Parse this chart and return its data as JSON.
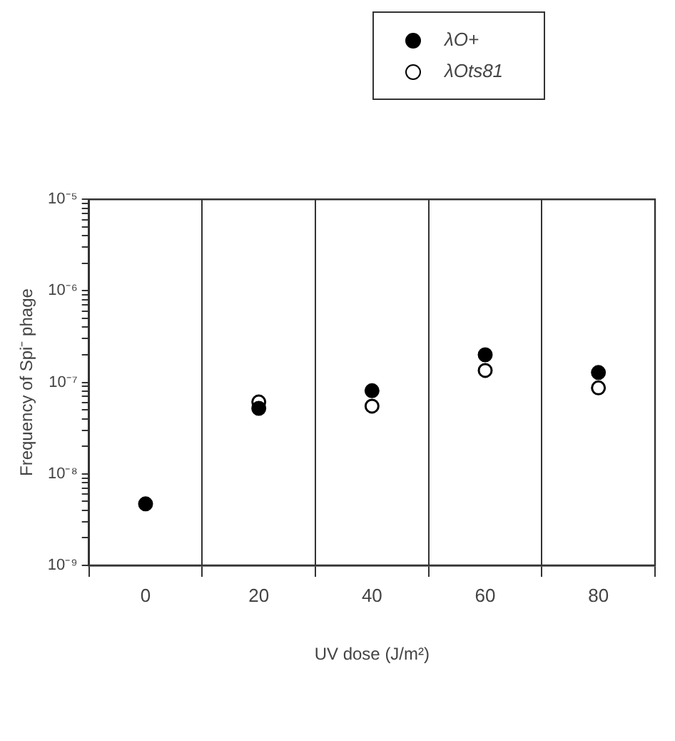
{
  "chart_data": {
    "type": "scatter",
    "xlabel": "UV dose (J/m²)",
    "ylabel": "Frequency of Spi⁻ phage",
    "categories": [
      "0",
      "20",
      "40",
      "60",
      "80"
    ],
    "series": [
      {
        "name": "λO+",
        "color": "#000000",
        "values": [
          4.7e-09,
          5.2e-08,
          8.1e-08,
          2e-07,
          1.28e-07
        ]
      },
      {
        "name": "λOts81",
        "color": "#000000",
        "values": [
          null,
          6.1e-08,
          5.5e-08,
          1.35e-07,
          8.7e-08
        ]
      }
    ],
    "log": "y",
    "ylim": [
      1e-09,
      1e-05
    ],
    "yticks": [
      {
        "value": 1e-09,
        "label": "10⁻⁹"
      },
      {
        "value": 2e-09,
        "label": null
      },
      {
        "value": 3e-09,
        "label": null
      },
      {
        "value": 4e-09,
        "label": null
      },
      {
        "value": 5e-09,
        "label": null
      },
      {
        "value": 6e-09,
        "label": null
      },
      {
        "value": 7e-09,
        "label": null
      },
      {
        "value": 8e-09,
        "label": null
      },
      {
        "value": 9e-09,
        "label": null
      },
      {
        "value": 1e-08,
        "label": "10⁻⁸"
      },
      {
        "value": 2e-08,
        "label": null
      },
      {
        "value": 3e-08,
        "label": null
      },
      {
        "value": 4e-08,
        "label": null
      },
      {
        "value": 5e-08,
        "label": null
      },
      {
        "value": 6e-08,
        "label": null
      },
      {
        "value": 7e-08,
        "label": null
      },
      {
        "value": 8e-08,
        "label": null
      },
      {
        "value": 9e-08,
        "label": null
      },
      {
        "value": 1e-07,
        "label": "10⁻⁷"
      },
      {
        "value": 2e-07,
        "label": null
      },
      {
        "value": 3e-07,
        "label": null
      },
      {
        "value": 4e-07,
        "label": null
      },
      {
        "value": 5e-07,
        "label": null
      },
      {
        "value": 6e-07,
        "label": null
      },
      {
        "value": 7e-07,
        "label": null
      },
      {
        "value": 8e-07,
        "label": null
      },
      {
        "value": 9e-07,
        "label": null
      },
      {
        "value": 1e-06,
        "label": "10⁻⁶"
      },
      {
        "value": 2e-06,
        "label": null
      },
      {
        "value": 3e-06,
        "label": null
      },
      {
        "value": 4e-06,
        "label": null
      },
      {
        "value": 5e-06,
        "label": null
      },
      {
        "value": 6e-06,
        "label": null
      },
      {
        "value": 7e-06,
        "label": null
      },
      {
        "value": 8e-06,
        "label": null
      },
      {
        "value": 9e-06,
        "label": null
      },
      {
        "value": 1e-05,
        "label": "10⁻⁵"
      }
    ],
    "grid": "x",
    "legend": "top",
    "marker": "circle"
  }
}
